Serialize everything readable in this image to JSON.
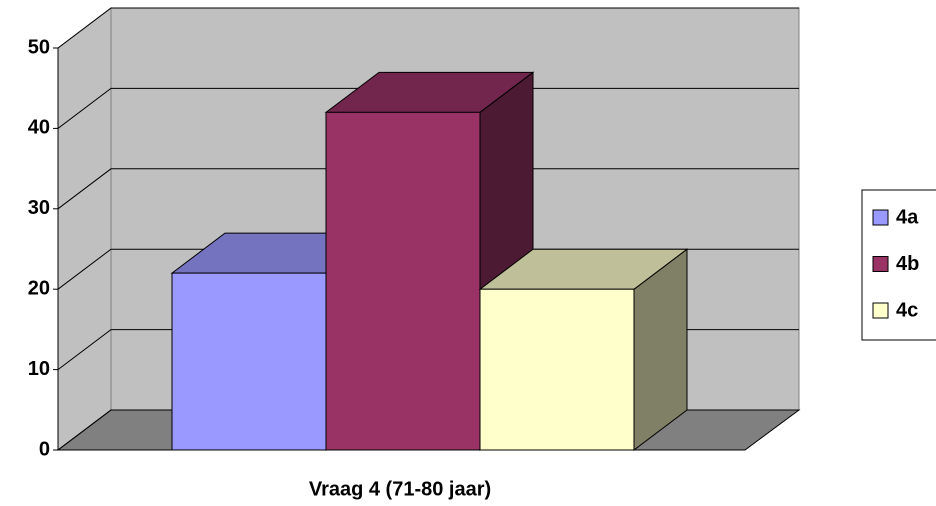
{
  "chart_data": {
    "type": "bar3d",
    "categories": [
      "Vraag 4 (71-80 jaar)"
    ],
    "series": [
      {
        "name": "4a",
        "color": "#9999ff",
        "values": [
          22
        ]
      },
      {
        "name": "4b",
        "color": "#993366",
        "values": [
          42
        ]
      },
      {
        "name": "4c",
        "color": "#ffffcc",
        "values": [
          20
        ]
      }
    ],
    "ylim": [
      0,
      50
    ],
    "yticks": [
      0,
      10,
      20,
      30,
      40,
      50
    ],
    "grid": true,
    "legend": "right"
  }
}
